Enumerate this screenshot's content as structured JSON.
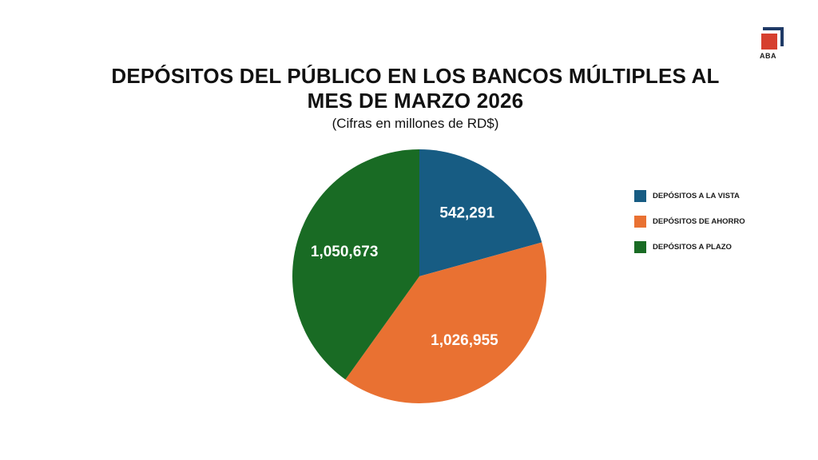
{
  "brand": {
    "logo_text": "ABA",
    "colors": {
      "square": "#d6402f",
      "corner": "#1f3a66"
    }
  },
  "chart_data": {
    "type": "pie",
    "title_line1": "DEPÓSITOS DEL PÚBLICO EN LOS BANCOS MÚLTIPLES AL",
    "title_line2": "MES DE MARZO 2026",
    "subtitle": "(Cifras en millones de RD$)",
    "legend_position": "right",
    "slices": [
      {
        "label": "DEPÓSITOS A LA VISTA",
        "value": 542291,
        "display": "542,291",
        "color": "#175c83"
      },
      {
        "label": "DEPÓSITOS DE AHORRO",
        "value": 1026955,
        "display": "1,026,955",
        "color": "#e97132"
      },
      {
        "label": "DEPÓSITOS A PLAZO",
        "value": 1050673,
        "display": "1,050,673",
        "color": "#196b24"
      }
    ]
  }
}
